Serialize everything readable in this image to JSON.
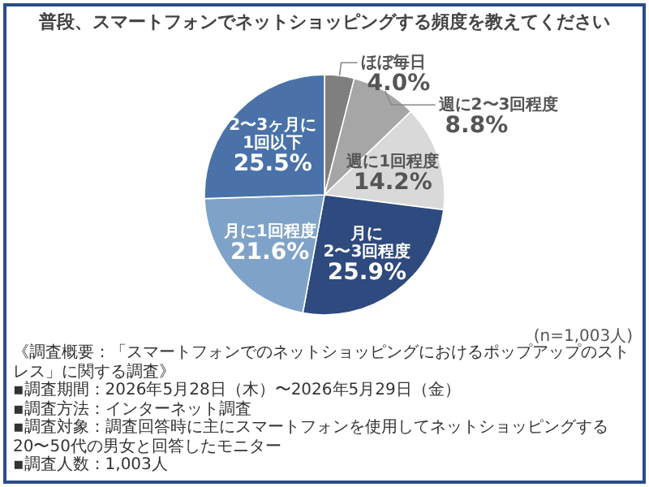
{
  "chart_data": {
    "type": "pie",
    "title": "普段、スマートフォンでネットショッピングする頻度を教えてください",
    "categories": [
      "ほぼ毎日",
      "週に2〜3回程度",
      "週に1回程度",
      "月に\n2〜3回程度",
      "月に1回程度",
      "2〜3ヶ月に\n1回以下"
    ],
    "values": [
      4.0,
      8.8,
      14.2,
      25.9,
      21.6,
      25.5
    ],
    "value_labels": [
      "4.0%",
      "8.8%",
      "14.2%",
      "25.9%",
      "21.6%",
      "25.5%"
    ],
    "colors": [
      "#7f7f7f",
      "#a6a6a6",
      "#d9d9d9",
      "#2e4a7e",
      "#7fa3c8",
      "#4a72a8"
    ],
    "annotations": [
      "(n=1,003人)",
      "《調査概要：「スマートフォンでのネットショッピングにおけるポップアップのストレス」に関する調査》",
      "▪調査期間：2026年5月28日（木）〜2026年5月29日（金）",
      "▪調査方法：インターネット調査",
      "▪調査対象：調査回答時に主にスマートフォンを使用してネットショッピングする20〜50代の男女と回答したモニター",
      "▪調査人数：1,003人"
    ]
  }
}
